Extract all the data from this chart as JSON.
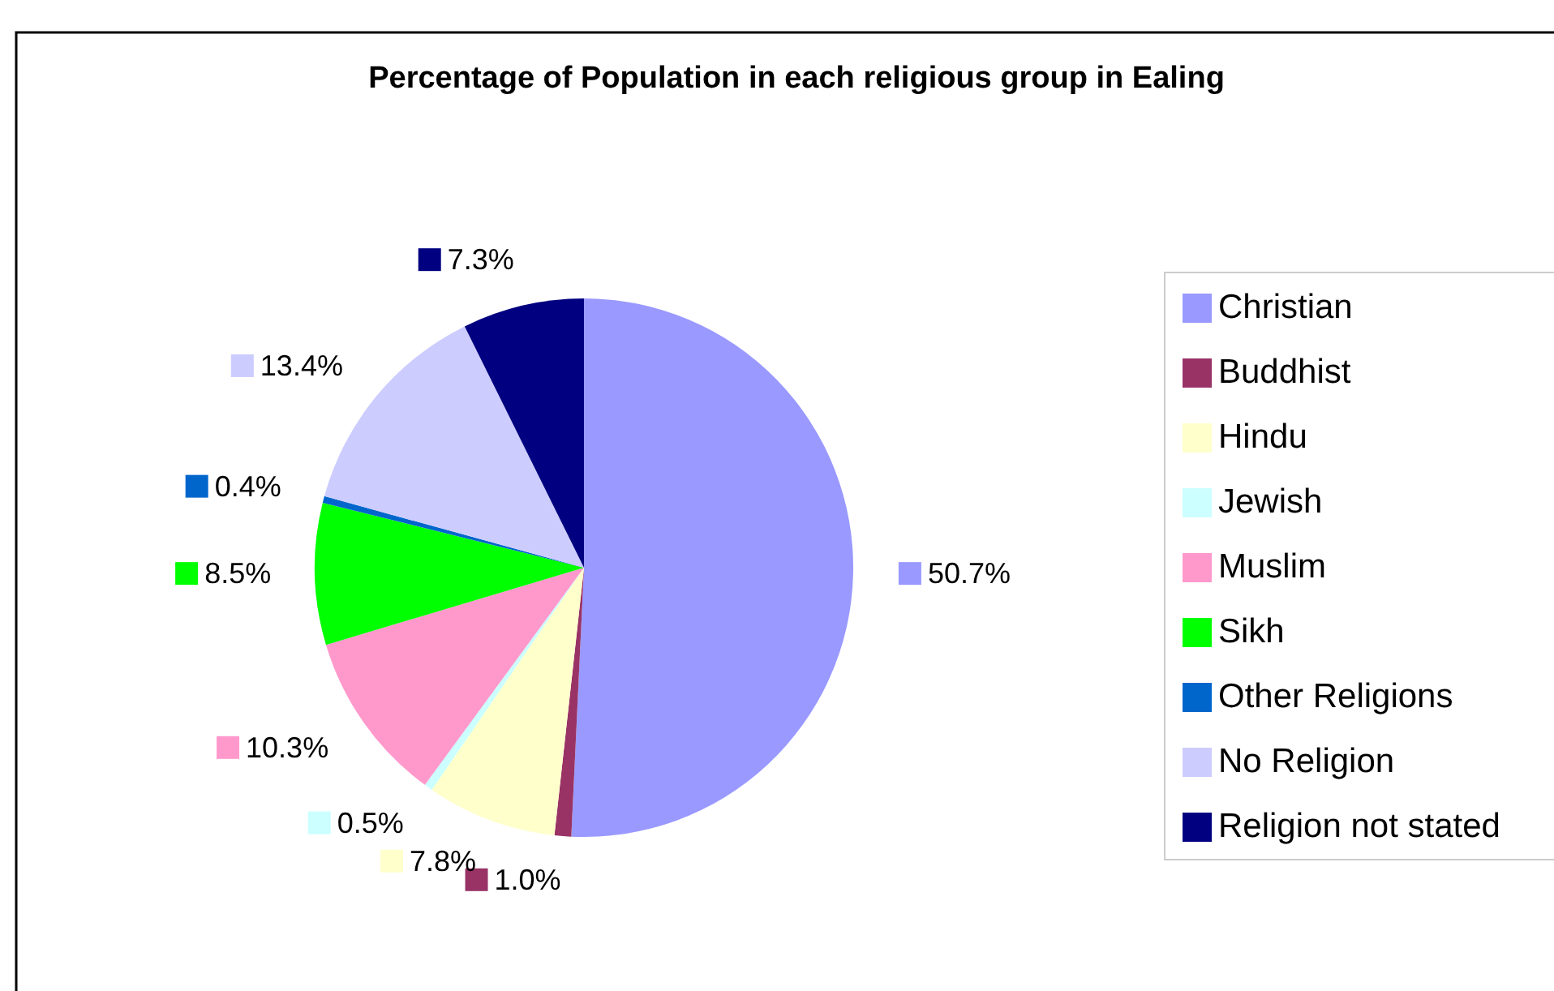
{
  "chart_data": {
    "type": "pie",
    "title": "Percentage of Population in each religious group in Ealing",
    "categories": [
      "Christian",
      "Buddhist",
      "Hindu",
      "Jewish",
      "Muslim",
      "Sikh",
      "Other Religions",
      "No Religion",
      "Religion not stated"
    ],
    "values": [
      50.7,
      1.0,
      7.8,
      0.5,
      10.3,
      8.5,
      0.4,
      13.4,
      7.3
    ],
    "colors": [
      "#9999ff",
      "#993366",
      "#ffffcc",
      "#ccffff",
      "#ff99cc",
      "#00ff00",
      "#0066cc",
      "#ccccff",
      "#000080"
    ],
    "value_labels": [
      "50.7%",
      "1.0%",
      "7.8%",
      "0.5%",
      "10.3%",
      "8.5%",
      "0.4%",
      "13.4%",
      "7.3%"
    ],
    "legend": "right"
  }
}
